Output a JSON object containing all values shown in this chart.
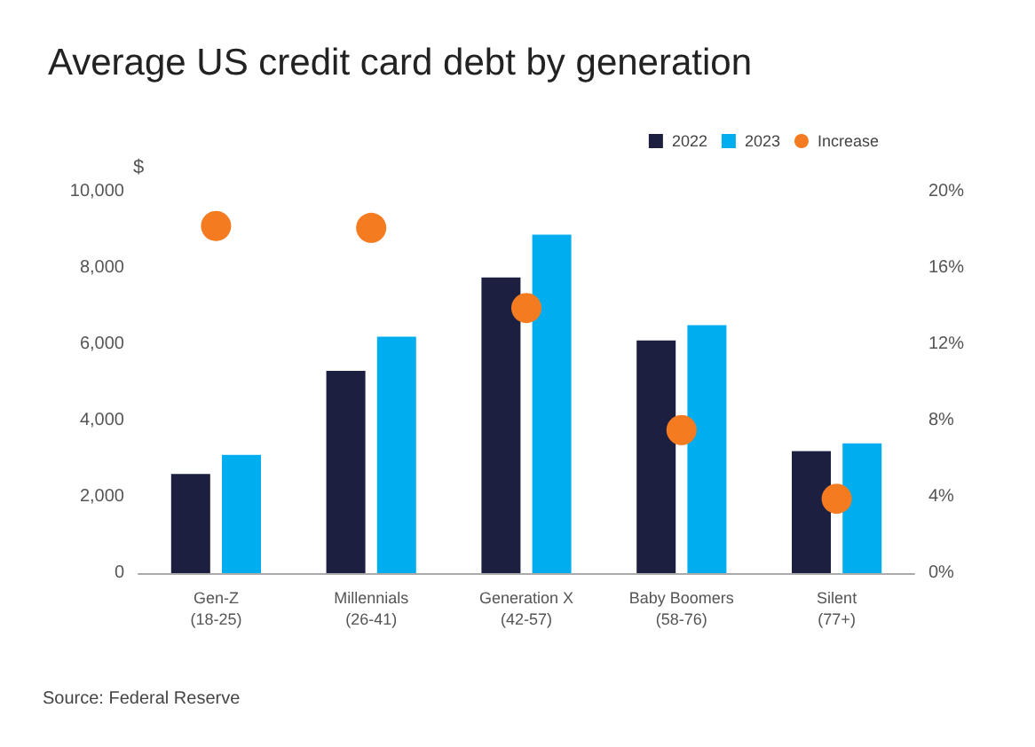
{
  "chart_data": {
    "type": "bar",
    "title": "Average US credit card debt by generation",
    "categories": [
      "Gen-Z\n(18-25)",
      "Millennials\n(26-41)",
      "Generation X\n(42-57)",
      "Baby Boomers\n(58-76)",
      "Silent\n(77+)"
    ],
    "series": [
      {
        "name": "2022",
        "color": "#1c1f3f",
        "values": [
          2600,
          5300,
          7750,
          6100,
          3200
        ]
      },
      {
        "name": "2023",
        "color": "#00aeef",
        "values": [
          3100,
          6200,
          8870,
          6500,
          3400
        ]
      },
      {
        "name": "Increase",
        "type": "scatter",
        "axis": "y2",
        "color": "#f47b20",
        "x": [
          "Gen-Z\n(18-25)",
          "Millennials\n(26-41)",
          "Generation X\n(42-57)",
          "Baby Boomers\n(58-76)",
          "Silent\n(77+)"
        ],
        "values": [
          18.2,
          18.1,
          13.9,
          7.5,
          3.9
        ]
      }
    ],
    "ylabel": "$",
    "ylim": [
      0,
      10000
    ],
    "yticks": [
      0,
      {
        "value": 2000,
        "label": "2,000"
      },
      {
        "value": 4000,
        "label": "4,000"
      },
      {
        "value": 6000,
        "label": "6,000"
      },
      {
        "value": 8000,
        "label": "8,000"
      },
      {
        "value": 10000,
        "label": "10,000"
      }
    ],
    "y2lim": [
      0,
      20
    ],
    "y2ticks": [
      {
        "value": 0,
        "label": "0%"
      },
      {
        "value": 4,
        "label": "4%"
      },
      {
        "value": 8,
        "label": "8%"
      },
      {
        "value": 12,
        "label": "12%"
      },
      {
        "value": 16,
        "label": "16%"
      },
      {
        "value": 20,
        "label": "20%"
      }
    ],
    "legend": "top right",
    "grid": false,
    "marker": "circle",
    "annotations": [
      "Source: Federal Reserve"
    ]
  }
}
